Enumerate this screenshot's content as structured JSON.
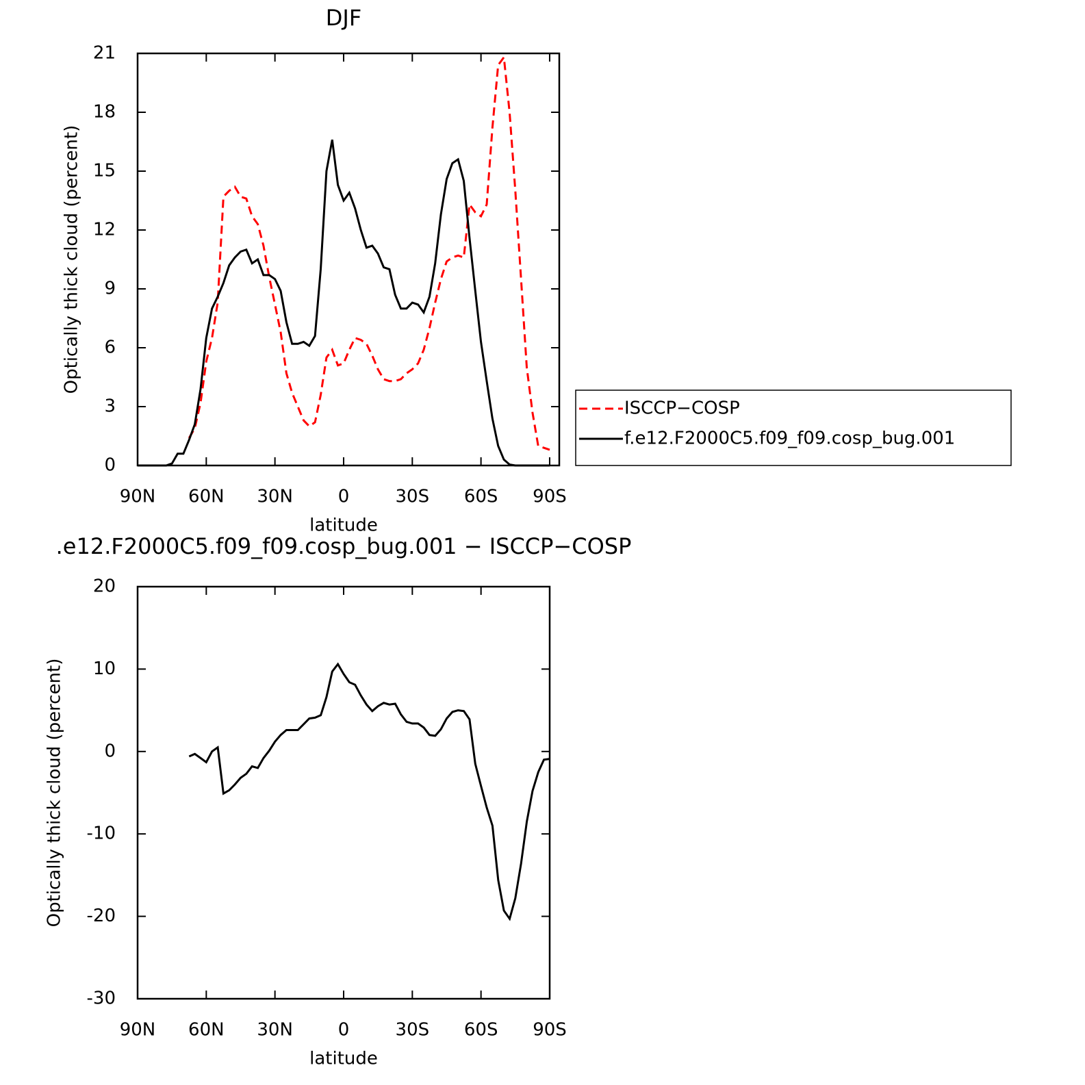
{
  "chart_data": [
    {
      "type": "line",
      "title": "DJF",
      "xlabel": "latitude",
      "ylabel": "Optically thick cloud (percent)",
      "x": [
        90,
        87.5,
        85,
        82.5,
        80,
        77.5,
        75,
        72.5,
        70,
        67.5,
        65,
        62.5,
        60,
        57.5,
        55,
        52.5,
        50,
        47.5,
        45,
        42.5,
        40,
        37.5,
        35,
        32.5,
        30,
        27.5,
        25,
        22.5,
        20,
        17.5,
        15,
        12.5,
        10,
        7.5,
        5,
        2.5,
        0,
        -2.5,
        -5,
        -7.5,
        -10,
        -12.5,
        -15,
        -17.5,
        -20,
        -22.5,
        -25,
        -27.5,
        -30,
        -32.5,
        -35,
        -37.5,
        -40,
        -42.5,
        -45,
        -47.5,
        -50,
        -52.5,
        -55,
        -57.5,
        -60,
        -62.5,
        -65,
        -67.5,
        -70,
        -72.5,
        -75,
        -77.5,
        -80,
        -82.5,
        -85,
        -87.5,
        -90
      ],
      "xlim": [
        90,
        -94.2
      ],
      "xticks": [
        {
          "value": 90,
          "label": "90N"
        },
        {
          "value": 60,
          "label": "60N"
        },
        {
          "value": 30,
          "label": "30N"
        },
        0,
        {
          "value": -30,
          "label": "30S"
        },
        {
          "value": -60,
          "label": "60S"
        },
        {
          "value": -90,
          "label": "90S"
        }
      ],
      "ylim": [
        0,
        21
      ],
      "yticks": [
        0,
        3,
        6,
        9,
        12,
        15,
        18,
        21
      ],
      "legend": "outside right",
      "series": [
        {
          "name": "ISCCP−COSP",
          "color": "#ff0000",
          "line_style": "dashed",
          "values": [
            null,
            null,
            null,
            null,
            null,
            null,
            null,
            null,
            null,
            1.4,
            1.9,
            3.2,
            5.3,
            6.5,
            8.3,
            13.7,
            14,
            14.2,
            13.7,
            13.6,
            12.7,
            12.3,
            11.2,
            9.6,
            8.2,
            6.8,
            4.7,
            3.7,
            3,
            2.3,
            2,
            2.2,
            3.6,
            5.5,
            5.9,
            5.1,
            5.2,
            5.9,
            6.5,
            6.4,
            6.2,
            5.6,
            4.9,
            4.4,
            4.3,
            4.3,
            4.4,
            4.7,
            4.9,
            5.2,
            5.9,
            7,
            8.3,
            9.5,
            10.4,
            10.6,
            10.7,
            10.6,
            13.3,
            12.9,
            12.7,
            13.3,
            17.2,
            20.4,
            20.8,
            18,
            14,
            9.5,
            5,
            2.7,
            1,
            0.9,
            0.8
          ]
        },
        {
          "name": "f.e12.F2000C5.f09_f09.cosp_bug.001",
          "color": "#000000",
          "line_style": "solid",
          "values": [
            0,
            0,
            0,
            0,
            0,
            0,
            0.1,
            0.6,
            0.6,
            1.3,
            2.1,
            3.9,
            6.5,
            8,
            8.6,
            9.3,
            10.2,
            10.6,
            10.9,
            11,
            10.3,
            10.5,
            9.7,
            9.7,
            9.5,
            8.9,
            7.3,
            6.2,
            6.2,
            6.3,
            6.1,
            6.6,
            10,
            15,
            16.6,
            14.3,
            13.5,
            13.9,
            13.1,
            12,
            11.1,
            11.2,
            10.8,
            10.1,
            10,
            8.7,
            8,
            8,
            8.3,
            8.2,
            7.8,
            8.6,
            10.3,
            12.8,
            14.6,
            15.4,
            15.6,
            14.5,
            11.6,
            8.9,
            6.3,
            4.3,
            2.4,
            1,
            0.3,
            0.05,
            0,
            0,
            0,
            0,
            0,
            0,
            0
          ]
        }
      ]
    },
    {
      "type": "line",
      "title": ".e12.F2000C5.f09_f09.cosp_bug.001 − ISCCP−COSP",
      "xlabel": "latitude",
      "ylabel": "Optically thick cloud (percent)",
      "x": [
        90,
        87.5,
        85,
        82.5,
        80,
        77.5,
        75,
        72.5,
        70,
        67.5,
        65,
        62.5,
        60,
        57.5,
        55,
        52.5,
        50,
        47.5,
        45,
        42.5,
        40,
        37.5,
        35,
        32.5,
        30,
        27.5,
        25,
        22.5,
        20,
        17.5,
        15,
        12.5,
        10,
        7.5,
        5,
        2.5,
        0,
        -2.5,
        -5,
        -7.5,
        -10,
        -12.5,
        -15,
        -17.5,
        -20,
        -22.5,
        -25,
        -27.5,
        -30,
        -32.5,
        -35,
        -37.5,
        -40,
        -42.5,
        -45,
        -47.5,
        -50,
        -52.5,
        -55,
        -57.5,
        -60,
        -62.5,
        -65,
        -67.5,
        -70,
        -72.5,
        -75,
        -77.5,
        -80,
        -82.5,
        -85,
        -87.5,
        -90
      ],
      "xlim": [
        90,
        -90
      ],
      "xticks": [
        {
          "value": 90,
          "label": "90N"
        },
        {
          "value": 60,
          "label": "60N"
        },
        {
          "value": 30,
          "label": "30N"
        },
        0,
        {
          "value": -30,
          "label": "30S"
        },
        {
          "value": -60,
          "label": "60S"
        },
        {
          "value": -90,
          "label": "90S"
        }
      ],
      "ylim": [
        -30,
        20
      ],
      "yticks": [
        -30,
        -20,
        -10,
        0,
        10,
        20
      ],
      "color": "#000000",
      "values": [
        null,
        null,
        null,
        null,
        null,
        null,
        null,
        null,
        null,
        -0.6,
        -0.3,
        -0.8,
        -1.3,
        0,
        0.5,
        -5.1,
        -4.7,
        -4,
        -3.2,
        -2.7,
        -1.8,
        -2,
        -0.8,
        0.1,
        1.2,
        2,
        2.6,
        2.6,
        2.6,
        3.3,
        4,
        4.1,
        4.4,
        6.6,
        9.7,
        10.6,
        9.4,
        8.4,
        8.1,
        6.8,
        5.7,
        4.9,
        5.5,
        5.9,
        5.7,
        5.8,
        4.5,
        3.6,
        3.4,
        3.4,
        2.9,
        2,
        1.9,
        2.7,
        4,
        4.8,
        5,
        4.9,
        3.9,
        -1.5,
        -4.2,
        -6.8,
        -9,
        -15.6,
        -19.3,
        -20.3,
        -17.8,
        -13.6,
        -8.5,
        -4.8,
        -2.5,
        -1,
        -0.9
      ]
    }
  ]
}
